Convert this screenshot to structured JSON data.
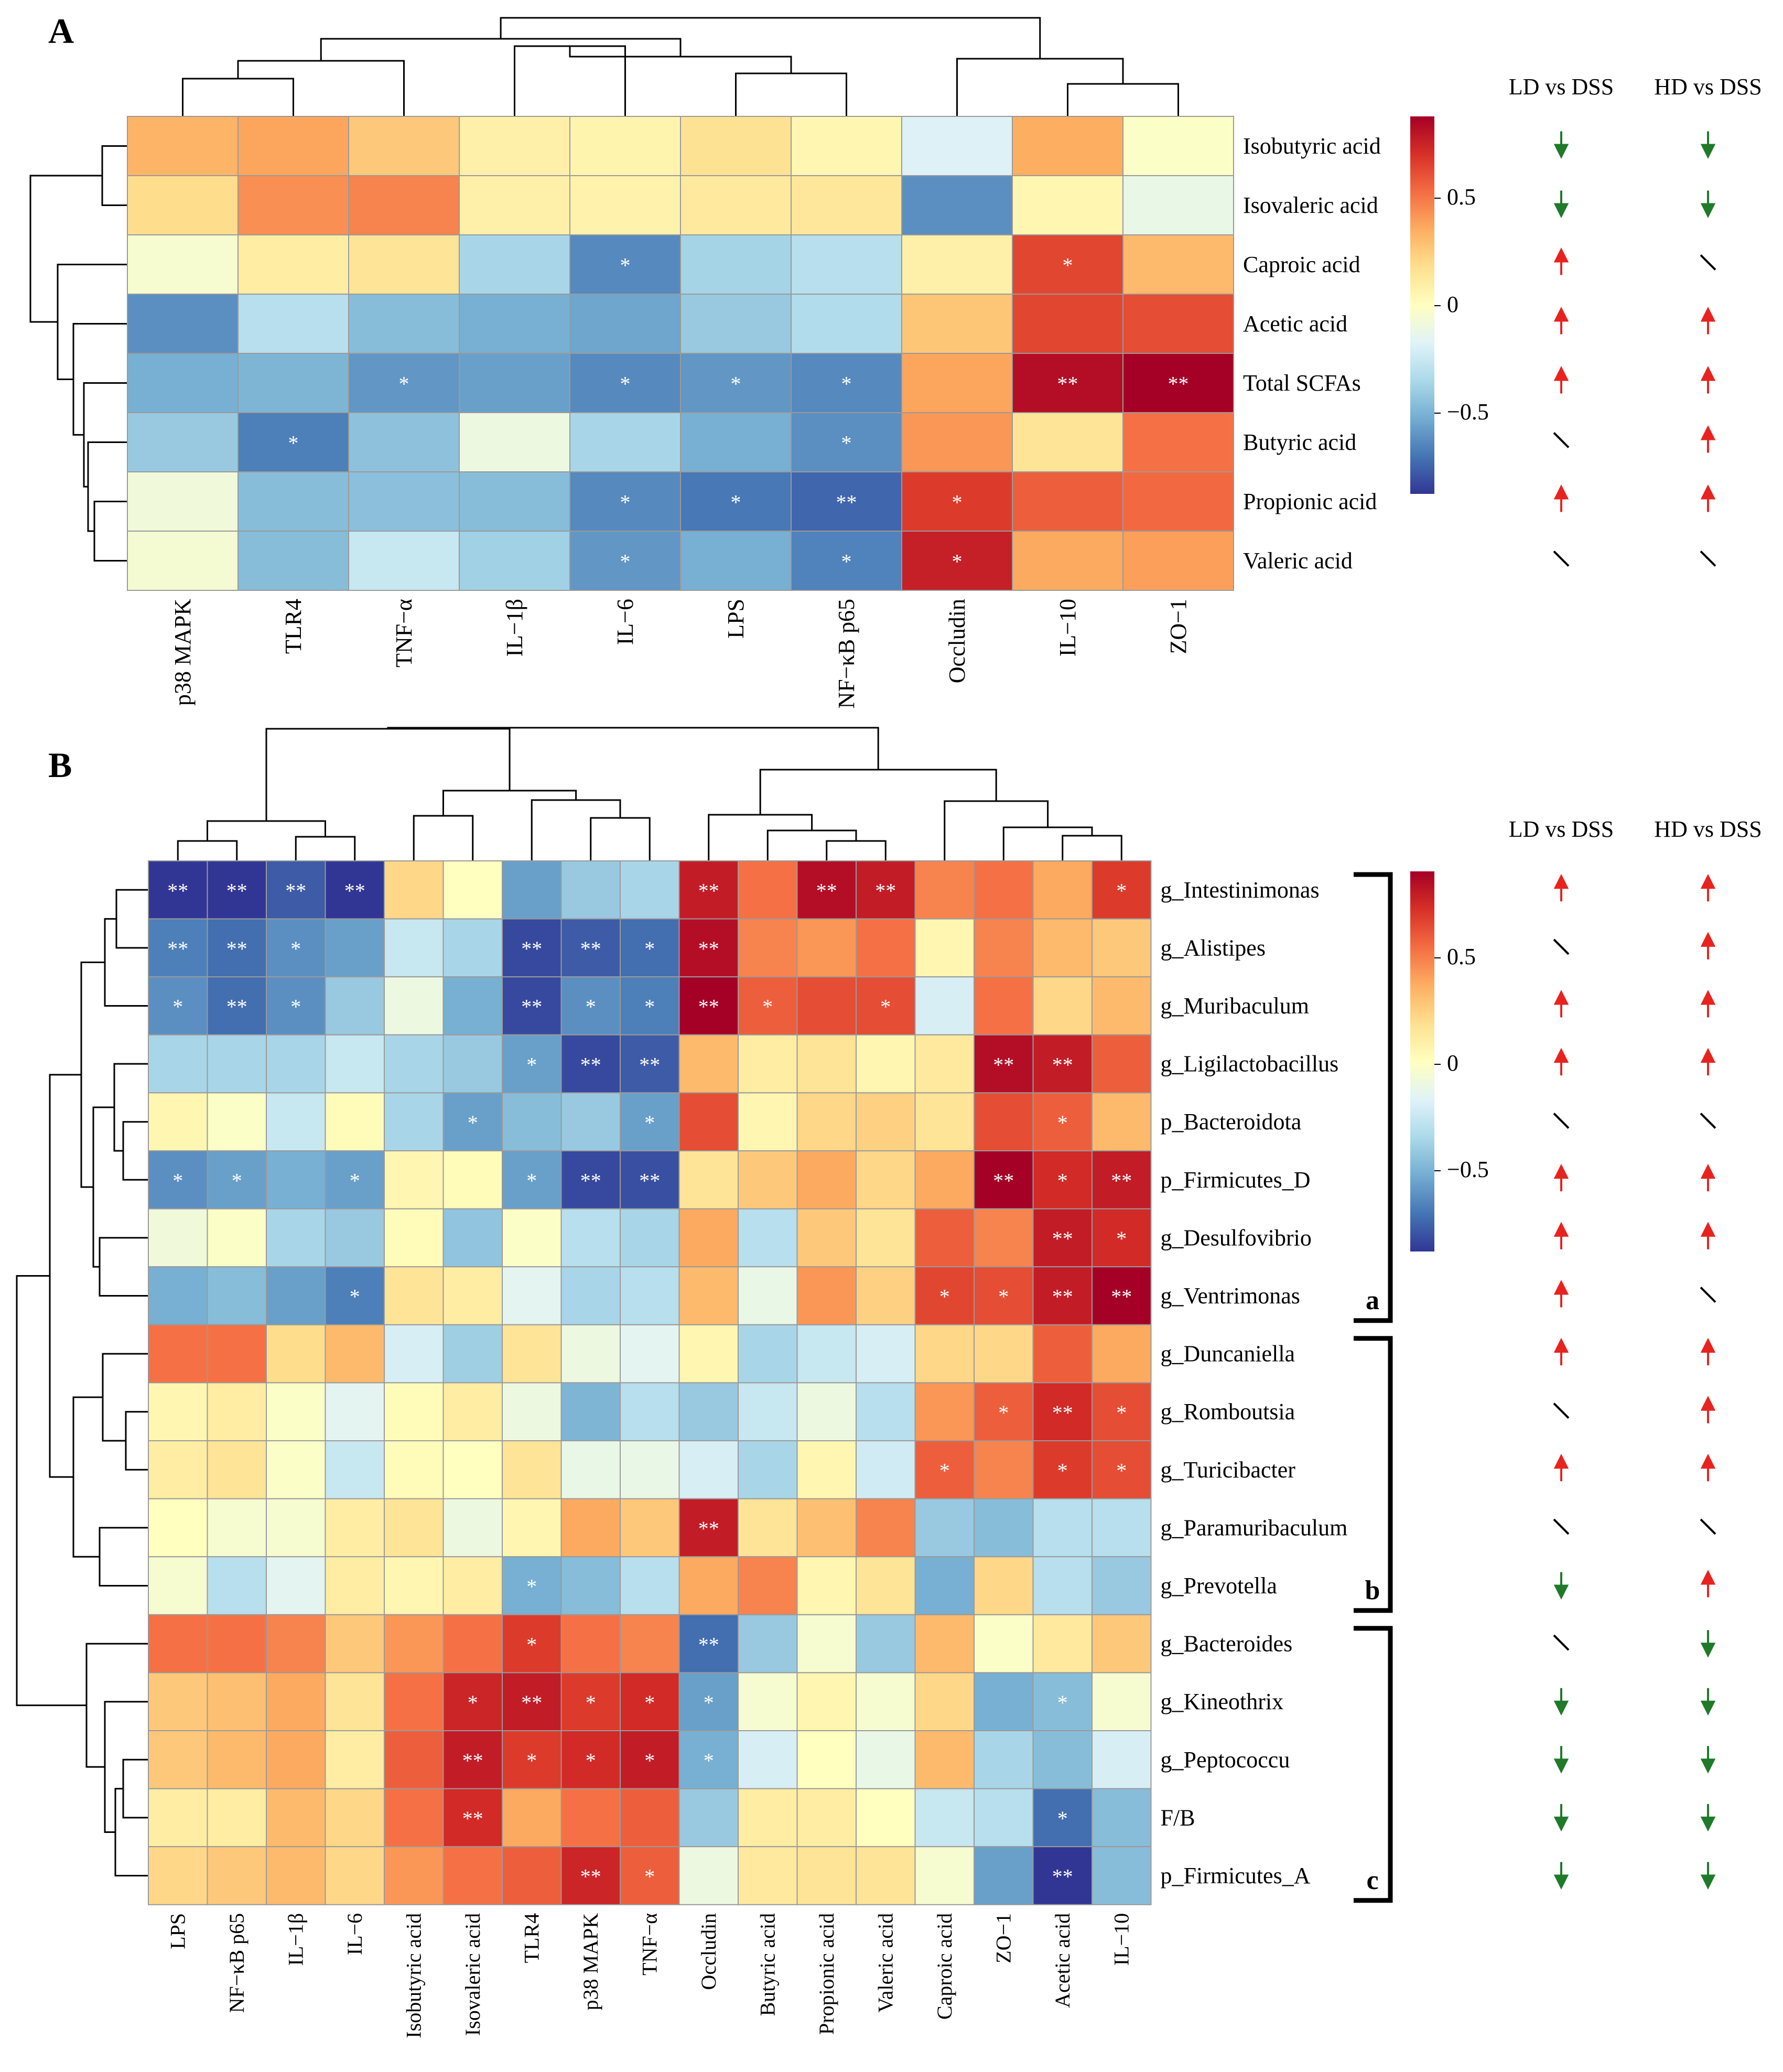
{
  "panel_labels": [
    "A",
    "B"
  ],
  "column_headers": {
    "ld": "LD vs DSS",
    "hd": "HD vs DSS"
  },
  "legend": {
    "ticks": [
      "0.5",
      "0",
      "−0.5"
    ],
    "tick_values": [
      0.5,
      0,
      -0.5
    ],
    "range": [
      -0.85,
      0.85
    ]
  },
  "colorscale": [
    "#313695",
    "#4575b4",
    "#74add1",
    "#abd9e9",
    "#e0f3f8",
    "#ffffbf",
    "#fee090",
    "#fdae61",
    "#f46d43",
    "#d73027",
    "#a50026"
  ],
  "arrow_colors": {
    "up": "#e8231f",
    "down": "#1f7a2a",
    "ns": "#000000"
  },
  "group_labels": [
    "a",
    "b",
    "c"
  ],
  "chart_data": [
    {
      "type": "heatmap",
      "id": "A",
      "title": "A",
      "columns": [
        "p38 MAPK",
        "TLR4",
        "TNF−α",
        "IL−1β",
        "IL−6",
        "LPS",
        "NF−κB p65",
        "Occludin",
        "IL−10",
        "ZO−1"
      ],
      "rows": [
        "Isobutyric acid",
        "Isovaleric acid",
        "Caproic acid",
        "Acetic acid",
        "Total SCFAs",
        "Butyric acid",
        "Propionic acid",
        "Valeric acid"
      ],
      "values": [
        [
          0.32,
          0.36,
          0.25,
          0.08,
          0.06,
          0.16,
          0.05,
          -0.18,
          0.34,
          -0.02
        ],
        [
          0.18,
          0.42,
          0.45,
          0.08,
          0.07,
          0.12,
          0.13,
          -0.6,
          0.05,
          -0.12
        ],
        [
          -0.05,
          0.1,
          0.15,
          -0.35,
          -0.62,
          -0.36,
          -0.3,
          0.08,
          0.62,
          0.3
        ],
        [
          -0.6,
          -0.3,
          -0.45,
          -0.5,
          -0.53,
          -0.4,
          -0.32,
          0.26,
          0.62,
          0.6
        ],
        [
          -0.5,
          -0.48,
          -0.58,
          -0.55,
          -0.62,
          -0.58,
          -0.62,
          0.36,
          0.8,
          0.85
        ],
        [
          -0.4,
          -0.65,
          -0.43,
          -0.1,
          -0.35,
          -0.5,
          -0.6,
          0.4,
          0.15,
          0.5
        ],
        [
          -0.08,
          -0.45,
          -0.44,
          -0.45,
          -0.62,
          -0.67,
          -0.72,
          0.65,
          0.55,
          0.52
        ],
        [
          -0.06,
          -0.45,
          -0.25,
          -0.37,
          -0.58,
          -0.5,
          -0.64,
          0.74,
          0.35,
          0.38
        ]
      ],
      "significance": [
        [
          "",
          "",
          "",
          "",
          "",
          "",
          "",
          "",
          "",
          ""
        ],
        [
          "",
          "",
          "",
          "",
          "",
          "",
          "",
          "",
          "",
          ""
        ],
        [
          "",
          "",
          "",
          "",
          "*",
          "",
          "",
          "",
          "*",
          ""
        ],
        [
          "",
          "",
          "",
          "",
          "",
          "",
          "",
          "",
          "",
          ""
        ],
        [
          "",
          "",
          "*",
          "",
          "*",
          "*",
          "*",
          "",
          "**",
          "**"
        ],
        [
          "",
          "*",
          "",
          "",
          "",
          "",
          "*",
          "",
          "",
          ""
        ],
        [
          "",
          "",
          "",
          "",
          "*",
          "*",
          "**",
          "*",
          "",
          ""
        ],
        [
          "",
          "",
          "",
          "",
          "*",
          "",
          "*",
          "*",
          "",
          ""
        ]
      ],
      "ld_vs_dss": [
        "down",
        "down",
        "up",
        "up",
        "up",
        "ns",
        "up",
        "ns"
      ],
      "hd_vs_dss": [
        "down",
        "down",
        "ns",
        "up",
        "up",
        "up",
        "up",
        "ns"
      ]
    },
    {
      "type": "heatmap",
      "id": "B",
      "title": "B",
      "columns": [
        "LPS",
        "NF−κB p65",
        "IL−1β",
        "IL−6",
        "Isobutyric acid",
        "Isovaleric acid",
        "TLR4",
        "p38 MAPK",
        "TNF−α",
        "Occludin",
        "Butyric acid",
        "Propionic acid",
        "Valeric acid",
        "Caproic acid",
        "ZO−1",
        "Acetic acid",
        "IL−10"
      ],
      "rows": [
        "g_Intestinimonas",
        "g_Alistipes",
        "g_Muribaculum",
        "g_Ligilactobacillus",
        "p_Bacteroidota",
        "p_Firmicutes_D",
        "g_Desulfovibrio",
        "g_Ventrimonas",
        "g_Duncaniella",
        "g_Romboutsia",
        "g_Turicibacter",
        "g_Paramuribaculum",
        "g_Prevotella",
        "g_Bacteroides",
        "g_Kineothrix",
        "g_Peptococcu",
        "F/B",
        "p_Firmicutes_A"
      ],
      "values": [
        [
          -0.85,
          -0.85,
          -0.75,
          -0.85,
          0.2,
          0.0,
          -0.55,
          -0.4,
          -0.35,
          0.75,
          0.5,
          0.8,
          0.75,
          0.45,
          0.5,
          0.35,
          0.65
        ],
        [
          -0.65,
          -0.7,
          -0.6,
          -0.55,
          -0.25,
          -0.35,
          -0.8,
          -0.75,
          -0.7,
          0.8,
          0.45,
          0.4,
          0.5,
          0.05,
          0.45,
          0.3,
          0.25
        ],
        [
          -0.6,
          -0.7,
          -0.6,
          -0.4,
          -0.1,
          -0.5,
          -0.8,
          -0.6,
          -0.65,
          0.85,
          0.55,
          0.6,
          0.6,
          -0.2,
          0.5,
          0.2,
          0.3
        ],
        [
          -0.35,
          -0.35,
          -0.35,
          -0.25,
          -0.35,
          -0.4,
          -0.55,
          -0.8,
          -0.75,
          0.3,
          0.1,
          0.15,
          0.05,
          0.12,
          0.8,
          0.75,
          0.55
        ],
        [
          0.05,
          -0.02,
          -0.25,
          0.02,
          -0.35,
          -0.55,
          -0.45,
          -0.4,
          -0.55,
          0.6,
          0.05,
          0.2,
          0.22,
          0.15,
          0.6,
          0.55,
          0.3
        ],
        [
          -0.6,
          -0.55,
          -0.5,
          -0.55,
          0.05,
          0.02,
          -0.55,
          -0.8,
          -0.78,
          0.15,
          0.25,
          0.35,
          0.2,
          0.35,
          0.85,
          0.7,
          0.75
        ],
        [
          -0.08,
          -0.02,
          -0.35,
          -0.4,
          0.02,
          -0.42,
          -0.02,
          -0.3,
          -0.35,
          0.35,
          -0.3,
          0.25,
          0.15,
          0.55,
          0.45,
          0.75,
          0.7
        ],
        [
          -0.5,
          -0.45,
          -0.55,
          -0.65,
          0.15,
          0.1,
          -0.15,
          -0.35,
          -0.3,
          0.3,
          -0.12,
          0.4,
          0.22,
          0.62,
          0.6,
          0.75,
          0.85
        ],
        [
          0.5,
          0.5,
          0.18,
          0.3,
          -0.2,
          -0.38,
          0.15,
          -0.1,
          -0.15,
          0.05,
          -0.35,
          -0.25,
          -0.2,
          0.2,
          0.2,
          0.55,
          0.35
        ],
        [
          0.05,
          0.1,
          -0.02,
          -0.15,
          0.02,
          0.1,
          -0.1,
          -0.48,
          -0.3,
          -0.4,
          -0.25,
          -0.1,
          -0.3,
          0.4,
          0.55,
          0.7,
          0.6
        ],
        [
          0.1,
          0.15,
          -0.02,
          -0.25,
          0.02,
          0.0,
          0.15,
          -0.12,
          -0.12,
          -0.2,
          -0.35,
          0.05,
          -0.22,
          0.55,
          0.45,
          0.65,
          0.6
        ],
        [
          0.0,
          -0.05,
          -0.05,
          0.1,
          0.15,
          -0.1,
          0.05,
          0.35,
          0.25,
          0.75,
          0.15,
          0.28,
          0.45,
          -0.4,
          -0.45,
          -0.3,
          -0.3
        ],
        [
          -0.05,
          -0.3,
          -0.15,
          0.1,
          0.05,
          0.1,
          -0.5,
          -0.45,
          -0.3,
          0.35,
          0.45,
          0.05,
          0.15,
          -0.5,
          0.2,
          -0.3,
          -0.4
        ],
        [
          0.5,
          0.5,
          0.45,
          0.25,
          0.4,
          0.5,
          0.65,
          0.5,
          0.45,
          -0.7,
          -0.4,
          -0.05,
          -0.4,
          0.3,
          -0.02,
          0.12,
          0.25
        ],
        [
          0.25,
          0.28,
          0.35,
          0.15,
          0.5,
          0.72,
          0.75,
          0.65,
          0.7,
          -0.55,
          -0.05,
          0.05,
          -0.05,
          0.2,
          -0.5,
          -0.45,
          -0.05
        ],
        [
          0.25,
          0.3,
          0.35,
          0.1,
          0.55,
          0.75,
          0.65,
          0.7,
          0.75,
          -0.5,
          -0.2,
          0.0,
          -0.12,
          0.3,
          -0.35,
          -0.45,
          -0.2
        ],
        [
          0.1,
          0.1,
          0.3,
          0.2,
          0.5,
          0.7,
          0.35,
          0.5,
          0.55,
          -0.4,
          0.1,
          0.1,
          0.0,
          -0.25,
          -0.3,
          -0.7,
          -0.45
        ],
        [
          0.2,
          0.25,
          0.3,
          0.2,
          0.4,
          0.5,
          0.55,
          0.72,
          0.55,
          -0.1,
          0.12,
          0.15,
          0.15,
          -0.05,
          -0.55,
          -0.85,
          -0.45
        ]
      ],
      "significance": [
        [
          "**",
          "**",
          "**",
          "**",
          "",
          "",
          "",
          "",
          "",
          "**",
          "",
          "**",
          "**",
          "",
          "",
          "",
          "*"
        ],
        [
          "**",
          "**",
          "*",
          "",
          "",
          "",
          "**",
          "**",
          "*",
          "**",
          "",
          "",
          "",
          "",
          "",
          "",
          ""
        ],
        [
          "*",
          "**",
          "*",
          "",
          "",
          "",
          "**",
          "*",
          "*",
          "**",
          "*",
          "",
          "*",
          "",
          "",
          "",
          ""
        ],
        [
          "",
          "",
          "",
          "",
          "",
          "",
          "*",
          "**",
          "**",
          "",
          "",
          "",
          "",
          "",
          "**",
          "**",
          ""
        ],
        [
          "",
          "",
          "",
          "",
          "",
          "*",
          "",
          "",
          "*",
          "",
          "",
          "",
          "",
          "",
          "",
          "*",
          ""
        ],
        [
          "*",
          "*",
          "",
          "*",
          "",
          "",
          "*",
          "**",
          "**",
          "",
          "",
          "",
          "",
          "",
          "**",
          "*",
          "**"
        ],
        [
          "",
          "",
          "",
          "",
          "",
          "",
          "",
          "",
          "",
          "",
          "",
          "",
          "",
          "",
          "",
          "**",
          "*"
        ],
        [
          "",
          "",
          "",
          "*",
          "",
          "",
          "",
          "",
          "",
          "",
          "",
          "",
          "",
          "*",
          "*",
          "**",
          "**"
        ],
        [
          "",
          "",
          "",
          "",
          "",
          "",
          "",
          "",
          "",
          "",
          "",
          "",
          "",
          "",
          "",
          "",
          ""
        ],
        [
          "",
          "",
          "",
          "",
          "",
          "",
          "",
          "",
          "",
          "",
          "",
          "",
          "",
          "",
          "*",
          "**",
          "*"
        ],
        [
          "",
          "",
          "",
          "",
          "",
          "",
          "",
          "",
          "",
          "",
          "",
          "",
          "",
          "*",
          "",
          "*",
          "*"
        ],
        [
          "",
          "",
          "",
          "",
          "",
          "",
          "",
          "",
          "",
          "**",
          "",
          "",
          "",
          "",
          "",
          "",
          ""
        ],
        [
          "",
          "",
          "",
          "",
          "",
          "",
          "*",
          "",
          "",
          "",
          "",
          "",
          "",
          "",
          "",
          "",
          ""
        ],
        [
          "",
          "",
          "",
          "",
          "",
          "",
          "*",
          "",
          "",
          "**",
          "",
          "",
          "",
          "",
          "",
          "",
          ""
        ],
        [
          "",
          "",
          "",
          "",
          "",
          "*",
          "**",
          "*",
          "*",
          "*",
          "",
          "",
          "",
          "",
          "",
          "*",
          ""
        ],
        [
          "",
          "",
          "",
          "",
          "",
          "**",
          "*",
          "*",
          "*",
          "*",
          "",
          "",
          "",
          "",
          "",
          "",
          ""
        ],
        [
          "",
          "",
          "",
          "",
          "",
          "**",
          "",
          "",
          "",
          "",
          "",
          "",
          "",
          "",
          "",
          "*",
          ""
        ],
        [
          "",
          "",
          "",
          "",
          "",
          "",
          "",
          "**",
          "*",
          "",
          "",
          "",
          "",
          "",
          "",
          "**",
          ""
        ]
      ],
      "groups": [
        {
          "label": "a",
          "rows": [
            0,
            7
          ]
        },
        {
          "label": "b",
          "rows": [
            8,
            12
          ]
        },
        {
          "label": "c",
          "rows": [
            13,
            17
          ]
        }
      ],
      "ld_vs_dss": [
        "up",
        "ns",
        "up",
        "up",
        "ns",
        "up",
        "up",
        "up",
        "up",
        "ns",
        "up",
        "ns",
        "down",
        "ns",
        "down",
        "down",
        "down",
        "down"
      ],
      "hd_vs_dss": [
        "up",
        "up",
        "up",
        "up",
        "ns",
        "up",
        "up",
        "ns",
        "up",
        "up",
        "up",
        "ns",
        "up",
        "down",
        "down",
        "down",
        "down",
        "down"
      ]
    }
  ]
}
